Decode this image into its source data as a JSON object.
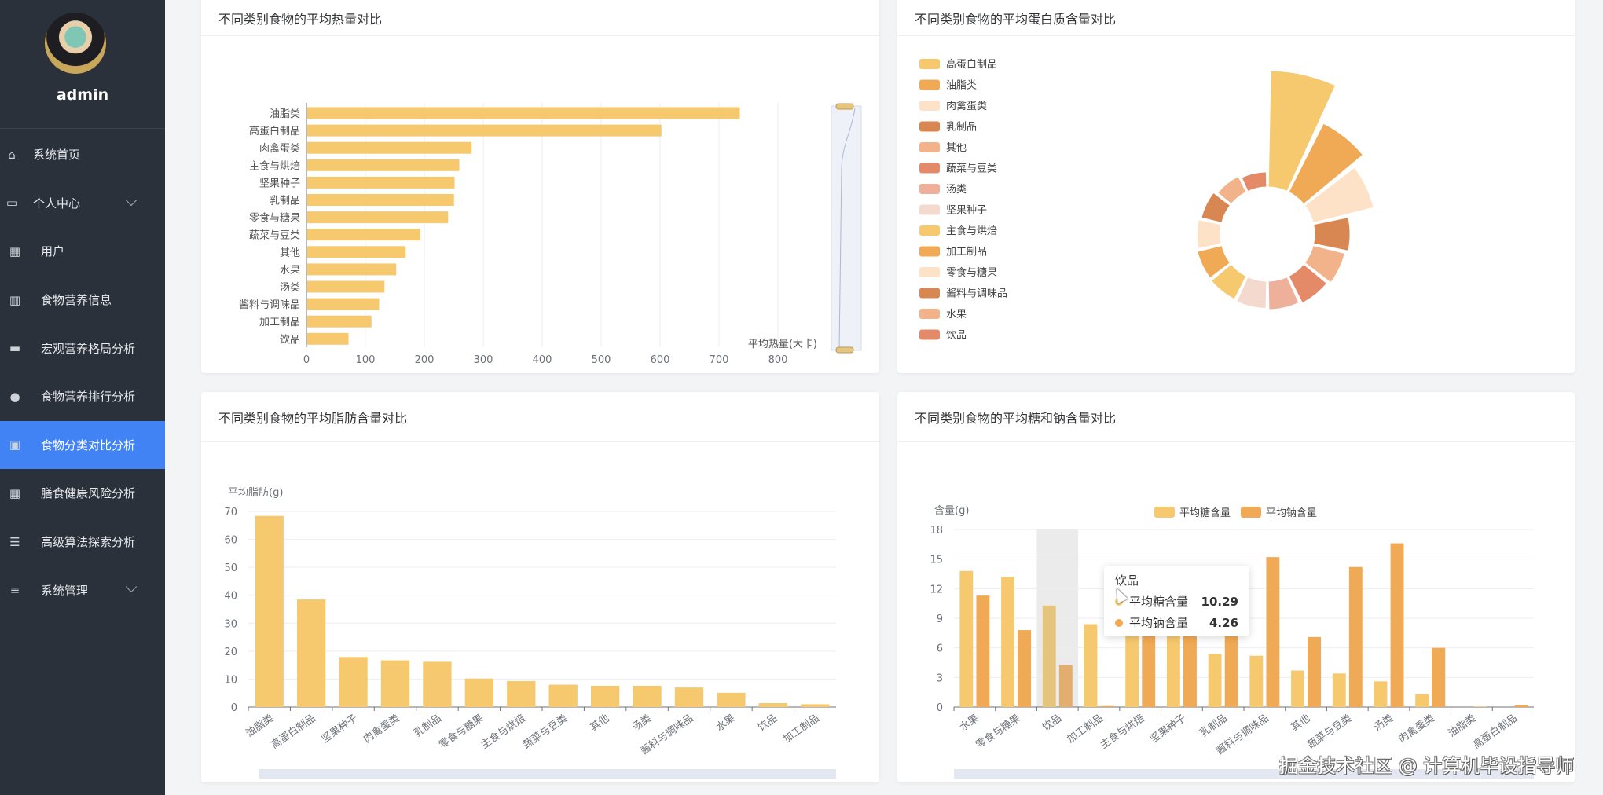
{
  "sidebar": {
    "username": "admin",
    "items": [
      {
        "label": "系统首页",
        "icon": "home-icon"
      },
      {
        "label": "个人中心",
        "icon": "card-icon",
        "expand": true
      },
      {
        "label": "用户",
        "icon": "grid-icon"
      },
      {
        "label": "食物营养信息",
        "icon": "books-icon"
      },
      {
        "label": "宏观营养格局分析",
        "icon": "monitor-icon"
      },
      {
        "label": "食物营养排行分析",
        "icon": "bulb-icon"
      },
      {
        "label": "食物分类对比分析",
        "icon": "clipboard-icon",
        "active": true
      },
      {
        "label": "膳食健康风险分析",
        "icon": "grid-icon"
      },
      {
        "label": "高级算法探索分析",
        "icon": "list-icon"
      },
      {
        "label": "系统管理",
        "icon": "sliders-icon",
        "expand": true
      }
    ]
  },
  "watermark": "掘金技术社区 @ 计算机毕设指导师",
  "colors": {
    "accent": "#4182f5",
    "bar": "#f6c96f",
    "sodium": "#f0a955"
  },
  "chart_data": [
    {
      "type": "bar",
      "orientation": "horizontal",
      "title": "不同类别食物的平均热量对比",
      "xlabel": "平均热量(大卡)",
      "xlim": [
        0,
        800
      ],
      "xticks": [
        0,
        100,
        200,
        300,
        400,
        500,
        600,
        700,
        800
      ],
      "categories": [
        "油脂类",
        "高蛋白制品",
        "肉禽蛋类",
        "主食与烘焙",
        "坚果种子",
        "乳制品",
        "零食与糖果",
        "蔬菜与豆类",
        "其他",
        "水果",
        "汤类",
        "酱料与调味品",
        "加工制品",
        "饮品"
      ],
      "values": [
        734,
        601,
        279,
        258,
        250,
        249,
        239,
        192,
        167,
        151,
        131,
        122,
        109,
        70
      ]
    },
    {
      "type": "pie",
      "roseType": true,
      "title": "不同类别食物的平均蛋白质含量对比",
      "legend": "left",
      "categories": [
        "高蛋白制品",
        "油脂类",
        "肉禽蛋类",
        "乳制品",
        "其他",
        "蔬菜与豆类",
        "汤类",
        "坚果种子",
        "主食与烘焙",
        "加工制品",
        "零食与糖果",
        "酱料与调味品",
        "水果",
        "饮品"
      ],
      "values": [
        25.0,
        15.5,
        12.0,
        5.5,
        4.8,
        4.2,
        3.8,
        3.5,
        3.2,
        3.0,
        2.6,
        2.0,
        1.2,
        0.6
      ],
      "palette": [
        "#f6c96f",
        "#f0a955",
        "#fde2c8",
        "#d98752",
        "#f2b38a",
        "#e58a68",
        "#eeb09a",
        "#f4d9cf"
      ]
    },
    {
      "type": "bar",
      "title": "不同类别食物的平均脂肪含量对比",
      "ylabel": "平均脂肪(g)",
      "ylim": [
        0,
        70
      ],
      "yticks": [
        0,
        10,
        20,
        30,
        40,
        50,
        60,
        70
      ],
      "categories": [
        "油脂类",
        "高蛋白制品",
        "坚果种子",
        "肉禽蛋类",
        "乳制品",
        "零食与糖果",
        "主食与烘焙",
        "蔬菜与豆类",
        "其他",
        "汤类",
        "酱料与调味品",
        "水果",
        "饮品",
        "加工制品"
      ],
      "values": [
        68.4,
        38.5,
        17.9,
        16.7,
        16.2,
        10.2,
        9.3,
        8.0,
        7.6,
        7.6,
        7.0,
        5.1,
        1.4,
        1.0
      ]
    },
    {
      "type": "bar",
      "title": "不同类别食物的平均糖和钠含量对比",
      "ylabel": "含量(g)",
      "ylim": [
        0,
        18
      ],
      "yticks": [
        0,
        3,
        6,
        9,
        12,
        15,
        18
      ],
      "categories": [
        "水果",
        "零食与糖果",
        "饮品",
        "加工制品",
        "主食与烘焙",
        "坚果种子",
        "乳制品",
        "酱料与调味品",
        "其他",
        "蔬菜与豆类",
        "汤类",
        "肉禽蛋类",
        "油脂类",
        "高蛋白制品"
      ],
      "series": [
        {
          "name": "平均糖含量",
          "color": "#f6c96f",
          "values": [
            13.8,
            13.2,
            10.29,
            8.4,
            8.0,
            7.6,
            5.4,
            5.2,
            3.7,
            3.4,
            2.6,
            1.3,
            0.0,
            0.0
          ]
        },
        {
          "name": "平均钠含量",
          "color": "#f0a955",
          "values": [
            11.3,
            7.8,
            4.26,
            0.1,
            9.0,
            8.2,
            8.0,
            15.2,
            7.1,
            14.2,
            16.6,
            6.0,
            0.05,
            0.2
          ]
        }
      ],
      "highlight": 2,
      "tooltip": {
        "title": "饮品",
        "rows": [
          {
            "name": "平均糖含量",
            "value": "10.29"
          },
          {
            "name": "平均钠含量",
            "value": "4.26"
          }
        ]
      }
    }
  ]
}
